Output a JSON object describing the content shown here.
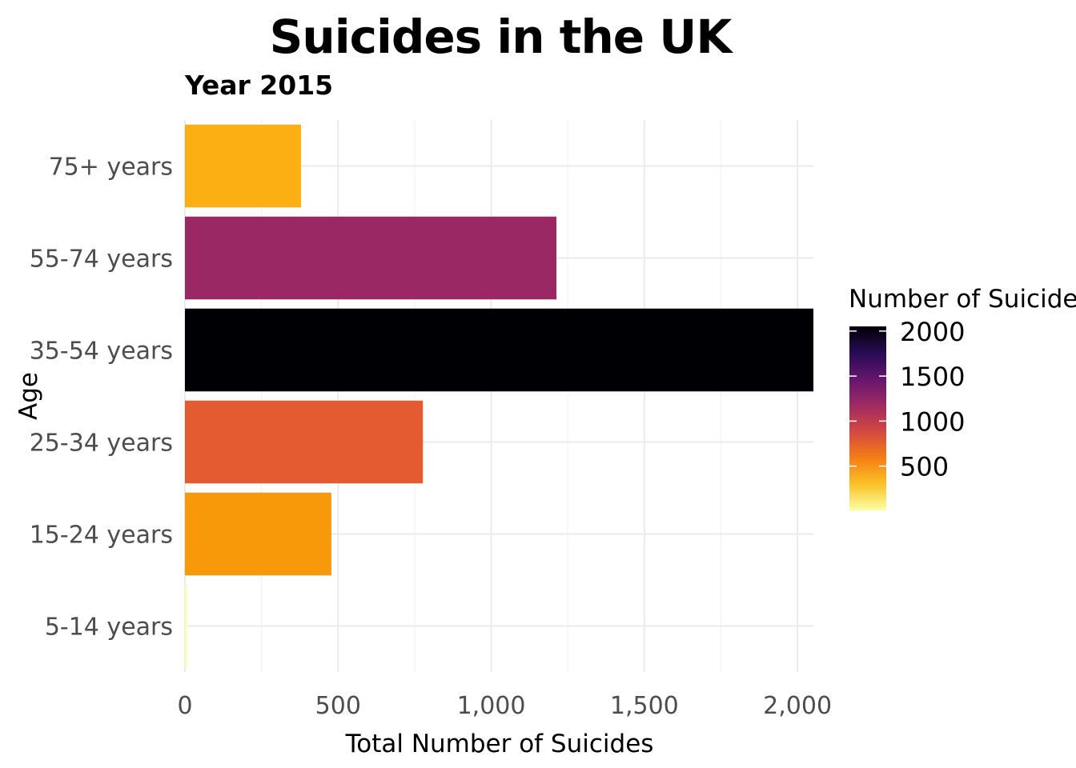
{
  "chart_data": {
    "type": "bar",
    "orientation": "horizontal",
    "title": "Suicides in the UK",
    "subtitle": "Year 2015",
    "xlabel": "Total Number of Suicides",
    "ylabel": "Age",
    "categories": [
      "5-14 years",
      "15-24 years",
      "25-34 years",
      "35-54 years",
      "55-74 years",
      "75+ years"
    ],
    "values": [
      8,
      478,
      777,
      2052,
      1213,
      379
    ],
    "xlim": [
      0,
      2052
    ],
    "x_ticks": [
      0,
      500,
      1000,
      1500,
      2000
    ],
    "x_tick_labels": [
      "0",
      "500",
      "1,000",
      "1,500",
      "2,000"
    ],
    "grid": true,
    "legend": {
      "title": "Number of Suicides",
      "placement": "right",
      "type": "colorbar",
      "palette": "inferno (reversed)",
      "range": [
        8,
        2052
      ],
      "ticks": [
        500,
        1000,
        1500,
        2000
      ],
      "tick_labels": [
        "500",
        "1000",
        "1500",
        "2000"
      ]
    },
    "colorbar_stops": [
      "#fcffa4",
      "#fac228",
      "#f57d15",
      "#d44842",
      "#9f2a63",
      "#65156e",
      "#280b53",
      "#000004"
    ],
    "bar_colors": [
      "#fcfdbf",
      "#f8990a",
      "#e45a31",
      "#000004",
      "#9a2864",
      "#fbaf12"
    ]
  }
}
